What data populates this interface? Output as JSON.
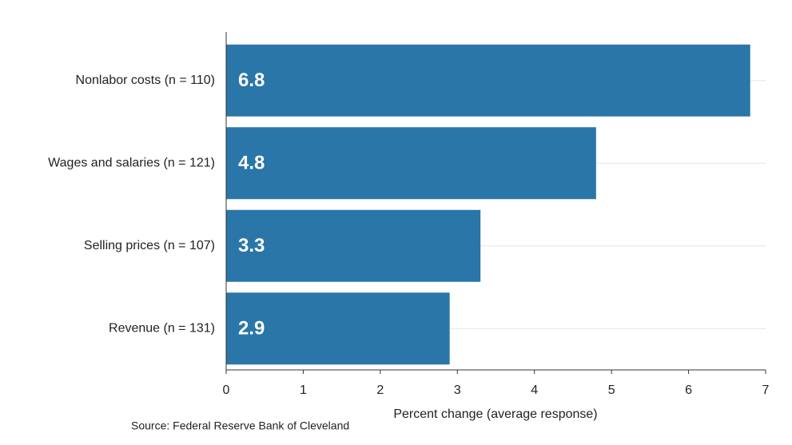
{
  "chart_data": {
    "type": "bar",
    "orientation": "horizontal",
    "categories": [
      "Nonlabor costs (n = 110)",
      "Wages and salaries (n = 121)",
      "Selling prices (n = 107)",
      "Revenue (n = 131)"
    ],
    "values": [
      6.8,
      4.8,
      3.3,
      2.9
    ],
    "color": "#2a76a8",
    "xlabel": "Percent change (average response)",
    "xlim": [
      0,
      7
    ],
    "xticks": [
      0,
      1,
      2,
      3,
      4,
      5,
      6,
      7
    ],
    "grid": true,
    "source": "Source: Federal Reserve Bank of Cleveland"
  }
}
